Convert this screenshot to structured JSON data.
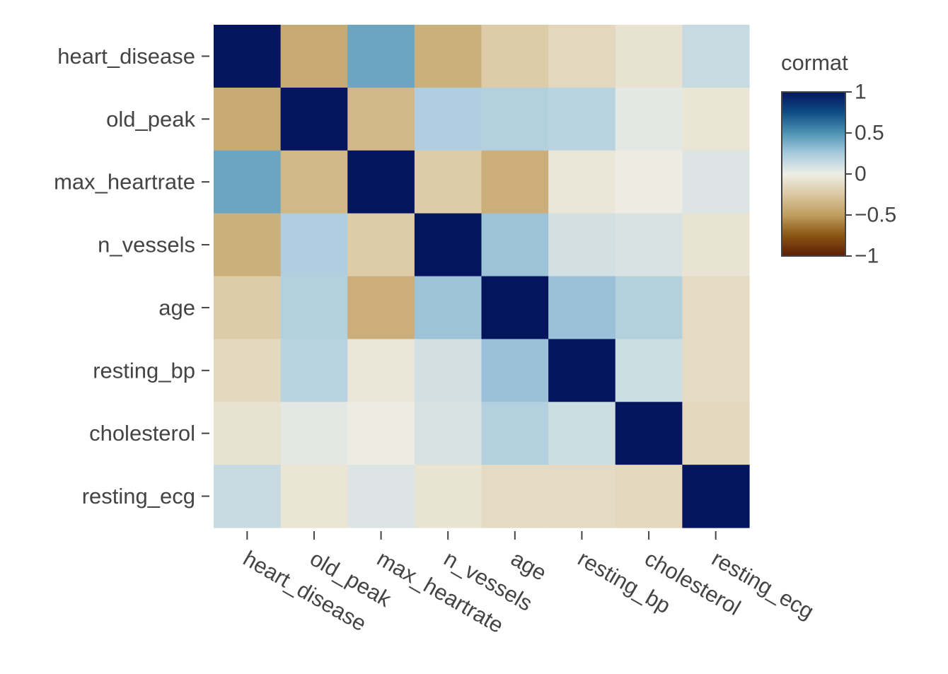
{
  "chart_data": {
    "type": "heatmap",
    "title": "",
    "xlabel": "",
    "ylabel": "",
    "x_categories": [
      "heart_disease",
      "old_peak",
      "max_heartrate",
      "n_vessels",
      "age",
      "resting_bp",
      "cholesterol",
      "resting_ecg"
    ],
    "y_categories": [
      "heart_disease",
      "old_peak",
      "max_heartrate",
      "n_vessels",
      "age",
      "resting_bp",
      "cholesterol",
      "resting_ecg"
    ],
    "z": [
      [
        1.0,
        -0.42,
        0.42,
        -0.39,
        -0.22,
        -0.15,
        -0.08,
        0.14
      ],
      [
        -0.42,
        1.0,
        -0.34,
        0.22,
        0.21,
        0.19,
        0.04,
        -0.06
      ],
      [
        0.42,
        -0.34,
        1.0,
        -0.22,
        -0.4,
        -0.05,
        -0.01,
        0.06
      ],
      [
        -0.39,
        0.22,
        -0.22,
        1.0,
        0.28,
        0.1,
        0.08,
        -0.07
      ],
      [
        -0.22,
        0.21,
        -0.4,
        0.28,
        1.0,
        0.29,
        0.21,
        -0.12
      ],
      [
        -0.15,
        0.19,
        -0.05,
        0.1,
        0.29,
        1.0,
        0.12,
        -0.12
      ],
      [
        -0.08,
        0.04,
        -0.01,
        0.08,
        0.21,
        0.12,
        1.0,
        -0.15
      ],
      [
        0.14,
        -0.06,
        0.06,
        -0.07,
        -0.12,
        -0.12,
        -0.15,
        1.0
      ]
    ],
    "zlim": [
      -1,
      1
    ],
    "colorscale": [
      [
        -1.0,
        "#5c1f03"
      ],
      [
        -0.75,
        "#8a5512"
      ],
      [
        -0.5,
        "#bf9e5f"
      ],
      [
        -0.25,
        "#dcc7a1"
      ],
      [
        0.0,
        "#eeeee6"
      ],
      [
        0.25,
        "#a8cade"
      ],
      [
        0.5,
        "#4e93b4"
      ],
      [
        0.75,
        "#0e4c86"
      ],
      [
        1.0,
        "#04155e"
      ]
    ],
    "legend": {
      "title": "cormat",
      "ticks": [
        1,
        0.5,
        0,
        -0.5,
        -1
      ],
      "tick_labels": [
        "1",
        "0.5",
        "0",
        "−0.5",
        "−1"
      ],
      "position": "right"
    }
  }
}
